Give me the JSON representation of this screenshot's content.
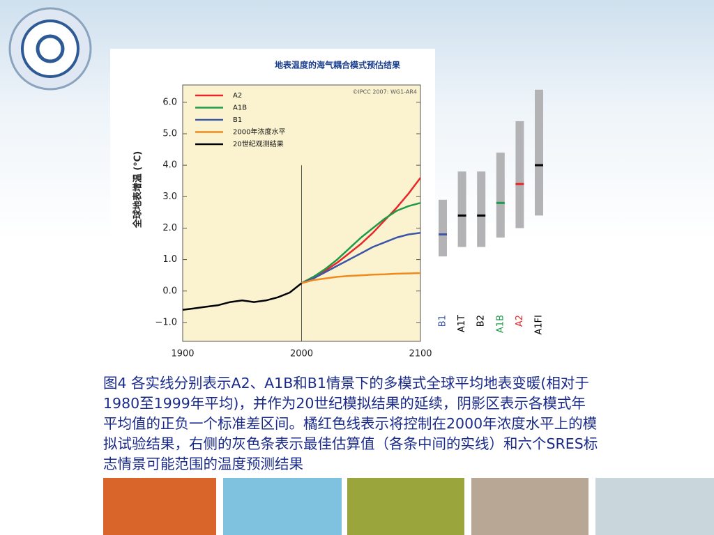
{
  "chart_data": {
    "type": "line",
    "title": "地表温度的海气耦合模式预估结果",
    "credit": "©IPCC 2007: WG1-AR4",
    "y_label": "全球地表增温 (°C)",
    "x": [
      1900,
      1910,
      1920,
      1930,
      1940,
      1950,
      1960,
      1970,
      1980,
      1990,
      2000,
      2010,
      2020,
      2030,
      2040,
      2050,
      2060,
      2070,
      2080,
      2090,
      2100
    ],
    "xlim": [
      1900,
      2100
    ],
    "xticks": [
      1900,
      2000,
      2100
    ],
    "ylim": [
      -1.6,
      6.55
    ],
    "yticks": [
      {
        "value": -1,
        "label": "−1.0"
      },
      {
        "value": 0,
        "label": "0.0"
      },
      {
        "value": 1,
        "label": "1.0"
      },
      {
        "value": 2,
        "label": "2.0"
      },
      {
        "value": 3,
        "label": "3.0"
      },
      {
        "value": 4,
        "label": "4.0"
      },
      {
        "value": 5,
        "label": "5.0"
      },
      {
        "value": 6,
        "label": "6.0"
      }
    ],
    "series": [
      {
        "name": "A2",
        "color": "#e8262a",
        "values": [
          null,
          null,
          null,
          null,
          null,
          null,
          null,
          null,
          null,
          null,
          0.25,
          0.45,
          0.65,
          0.9,
          1.2,
          1.5,
          1.85,
          2.25,
          2.65,
          3.1,
          3.6
        ]
      },
      {
        "name": "A1B",
        "color": "#1f9a48",
        "values": [
          null,
          null,
          null,
          null,
          null,
          null,
          null,
          null,
          null,
          null,
          0.25,
          0.45,
          0.7,
          1.0,
          1.35,
          1.7,
          2.0,
          2.3,
          2.55,
          2.7,
          2.8
        ]
      },
      {
        "name": "B1",
        "color": "#3b55a8",
        "values": [
          null,
          null,
          null,
          null,
          null,
          null,
          null,
          null,
          null,
          null,
          0.25,
          0.4,
          0.6,
          0.8,
          1.0,
          1.2,
          1.4,
          1.55,
          1.7,
          1.8,
          1.85
        ]
      },
      {
        "name": "2000年浓度水平",
        "color": "#f08a1c",
        "values": [
          null,
          null,
          null,
          null,
          null,
          null,
          null,
          null,
          null,
          null,
          0.25,
          0.35,
          0.4,
          0.45,
          0.48,
          0.5,
          0.52,
          0.53,
          0.55,
          0.56,
          0.57
        ]
      },
      {
        "name": "20世纪观测结果",
        "color": "#000000",
        "values": [
          -0.6,
          -0.55,
          -0.5,
          -0.45,
          -0.35,
          -0.3,
          -0.35,
          -0.3,
          -0.2,
          -0.05,
          0.25,
          null,
          null,
          null,
          null,
          null,
          null,
          null,
          null,
          null,
          null
        ]
      }
    ],
    "ranges": {
      "categories": [
        "B1",
        "A1T",
        "B2",
        "A1B",
        "A2",
        "A1FI"
      ],
      "low": [
        1.1,
        1.4,
        1.4,
        1.7,
        2.0,
        2.4
      ],
      "high": [
        2.9,
        3.8,
        3.8,
        4.4,
        5.4,
        6.4
      ],
      "best": [
        1.8,
        2.4,
        2.4,
        2.8,
        3.4,
        4.0
      ],
      "colors": [
        "#3b55a8",
        "#000000",
        "#000000",
        "#1f9a48",
        "#e8262a",
        "#000000"
      ],
      "bar_color": "#b3b3b5"
    },
    "caption": "图4 各实线分别表示A2、A1B和B1情景下的多模式全球平均地表变暖(相对于1980至1999年平均)，并作为20世纪模拟结果的延续，阴影区表示各模式年平均值的正负一个标准差区间。橘红色线表示将控制在2000年浓度水平上的模拟试验结果，右侧的灰色条表示最佳估算值（各条中间的实线）和六个SRES标志情景可能范围的温度预测结果"
  }
}
